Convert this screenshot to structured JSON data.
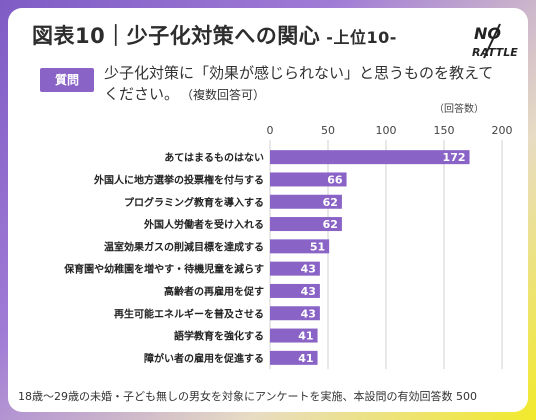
{
  "title": {
    "main": "図表10｜少子化対策への関心",
    "suffix": " -上位10-"
  },
  "logo": {
    "line1": "NO",
    "line2": "RATTLE"
  },
  "question": {
    "badge": "質問",
    "text": "少子化対策に「効果が感じられない」と思うものを教えてください。",
    "note": "（複数回答可）"
  },
  "unit_label": "（回答数）",
  "footer": "18歳～29歳の未婚・子ども無しの男女を対象にアンケートを実施、本設問の有効回答数 500",
  "colors": {
    "bar": "#8a63c6",
    "grid": "#d0d0d0",
    "label": "#222222",
    "value": "#ffffff"
  },
  "chart_data": {
    "type": "bar",
    "orientation": "horizontal",
    "xlim": [
      0,
      200
    ],
    "ticks": [
      0,
      50,
      100,
      150,
      200
    ],
    "categories": [
      "あてはまるものはない",
      "外国人に地方選挙の投票権を付与する",
      "プログラミング教育を導入する",
      "外国人労働者を受け入れる",
      "温室効果ガスの削減目標を達成する",
      "保育園や幼稚園を増やす・待機児童を減らす",
      "高齢者の再雇用を促す",
      "再生可能エネルギーを普及させる",
      "語学教育を強化する",
      "障がい者の雇用を促進する"
    ],
    "values": [
      172,
      66,
      62,
      62,
      51,
      43,
      43,
      43,
      41,
      41
    ],
    "grid": true
  }
}
